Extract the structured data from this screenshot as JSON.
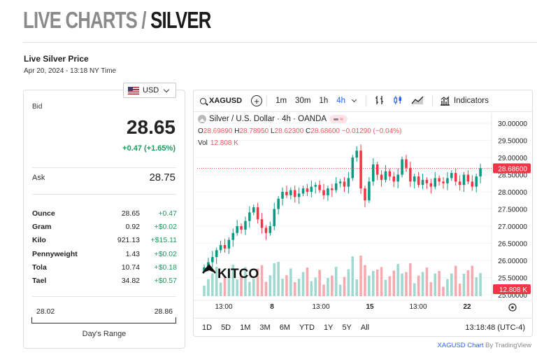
{
  "page": {
    "title_light": "LIVE CHARTS / ",
    "title_dark": "SILVER",
    "section_heading": "Live Silver Price",
    "timestamp": "Apr 20, 2024 - 13:18 NY Time"
  },
  "currency": {
    "selected": "USD",
    "flag_icon": "us-flag-icon"
  },
  "price_card": {
    "bid_label": "Bid",
    "bid_value": "28.65",
    "bid_change": "+0.47 (+1.65%)",
    "ask_label": "Ask",
    "ask_value": "28.75",
    "units": [
      {
        "name": "Ounce",
        "price": "28.65",
        "change": "+0.47"
      },
      {
        "name": "Gram",
        "price": "0.92",
        "change": "+$0.02"
      },
      {
        "name": "Kilo",
        "price": "921.13",
        "change": "+$15.11"
      },
      {
        "name": "Pennyweight",
        "price": "1.43",
        "change": "+$0.02"
      },
      {
        "name": "Tola",
        "price": "10.74",
        "change": "+$0.18"
      },
      {
        "name": "Tael",
        "price": "34.82",
        "change": "+$0.57"
      }
    ],
    "range_low": "28.02",
    "range_high": "28.86",
    "range_label": "Day's Range"
  },
  "chart": {
    "symbol": "XAGUSD",
    "intervals": [
      "1m",
      "30m",
      "1h",
      "4h"
    ],
    "active_interval": "4h",
    "indicators_label": "Indicators",
    "legend_title": "Silver / U.S. Dollar · 4h · OANDA",
    "ohlc": {
      "o": "28.69890",
      "h": "28.78950",
      "l": "28.62300",
      "c": "28.68600",
      "change": "−0.01290 (−0.04%)"
    },
    "vol_label": "Vol",
    "vol_value": "12.808 K",
    "ranges": [
      "1D",
      "5D",
      "1M",
      "3M",
      "6M",
      "YTD",
      "1Y",
      "5Y",
      "All"
    ],
    "clock": "13:18:48 (UTC-4)",
    "watermark": "KITCO",
    "colors": {
      "up": "#089981",
      "down": "#f23645",
      "vol_up": "#9fd8cf",
      "vol_down": "#f6a9ae",
      "accent": "#2962ff"
    }
  },
  "chart_data": {
    "type": "candlestick",
    "title": "Silver / U.S. Dollar · 4h · OANDA",
    "y_ticks": [
      "30.00000",
      "29.50000",
      "29.00000",
      "28.50000",
      "28.00000",
      "27.50000",
      "27.00000",
      "26.50000",
      "26.00000",
      "25.50000",
      "25.00000"
    ],
    "ylim": [
      25.0,
      30.0
    ],
    "x_ticks": [
      "13:00",
      "8",
      "13:00",
      "15",
      "13:00",
      "22"
    ],
    "last_price": "28.68600",
    "last_volume": "12.808 K",
    "series": [
      {
        "name": "Silver / U.S. Dollar",
        "close": [
          25.8,
          25.95,
          26.1,
          26.3,
          26.45,
          26.35,
          26.6,
          26.8,
          27.0,
          26.9,
          27.15,
          27.4,
          27.55,
          27.2,
          26.95,
          26.8,
          27.0,
          27.5,
          27.8,
          28.0,
          27.9,
          28.05,
          27.85,
          27.95,
          28.1,
          28.0,
          28.15,
          28.2,
          28.05,
          27.9,
          28.1,
          28.05,
          28.25,
          28.3,
          28.15,
          28.4,
          29.0,
          29.2,
          28.1,
          27.75,
          28.3,
          28.8,
          28.5,
          28.35,
          28.6,
          28.45,
          28.3,
          28.5,
          28.95,
          28.7,
          28.3,
          28.45,
          28.2,
          28.35,
          28.25,
          28.15,
          28.4,
          28.3,
          28.25,
          28.4,
          28.55,
          28.3,
          28.2,
          28.5,
          28.3,
          28.15,
          28.45,
          28.69
        ]
      }
    ]
  },
  "attribution": {
    "link_text": "XAGUSD Chart",
    "suffix": " By TradingView"
  }
}
